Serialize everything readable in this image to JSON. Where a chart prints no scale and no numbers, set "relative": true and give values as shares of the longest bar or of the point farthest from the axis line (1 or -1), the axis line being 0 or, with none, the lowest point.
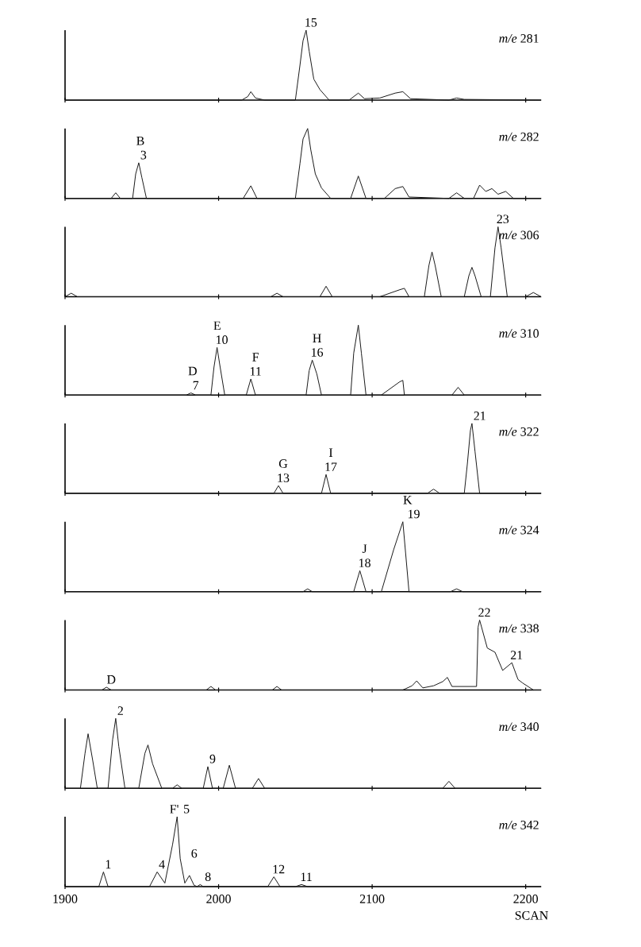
{
  "chart_data": [
    {
      "type": "line",
      "title": "*m/e* 281",
      "relative": true,
      "color": "#1a1a1a",
      "xlim": [
        1900,
        2210
      ],
      "xticks": [
        1900,
        2000,
        2100,
        2200
      ],
      "tick_labels": false,
      "x": [
        1900,
        2015,
        2019,
        2021,
        2024,
        2030,
        2050,
        2053,
        2055,
        2057,
        2059,
        2062,
        2066,
        2072,
        2085,
        2091,
        2095,
        2105,
        2115,
        2120,
        2125,
        2150,
        2155,
        2160,
        2210
      ],
      "values": [
        0,
        0,
        0.05,
        0.12,
        0.03,
        0,
        0,
        0.5,
        0.85,
        1,
        0.7,
        0.3,
        0.15,
        0,
        0,
        0.1,
        0.02,
        0.03,
        0.1,
        0.12,
        0.02,
        0,
        0.03,
        0.01,
        0
      ],
      "annotations": [
        {
          "text": "15",
          "x": 2057,
          "y": 1
        }
      ]
    },
    {
      "type": "line",
      "title": "*m/e* 282",
      "relative": true,
      "color": "#1a1a1a",
      "xlim": [
        1900,
        2210
      ],
      "xticks": [
        1900,
        2000,
        2100,
        2200
      ],
      "tick_labels": false,
      "x": [
        1900,
        1930,
        1933,
        1936,
        1944,
        1946,
        1948,
        1950,
        1953,
        2016,
        2021,
        2025,
        2050,
        2053,
        2055,
        2058,
        2060,
        2063,
        2067,
        2073,
        2086,
        2091,
        2096,
        2108,
        2115,
        2120,
        2124,
        2150,
        2155,
        2160,
        2166,
        2170,
        2174,
        2178,
        2182,
        2187,
        2192,
        2210
      ],
      "values": [
        0,
        0,
        0.08,
        0,
        0,
        0.35,
        0.51,
        0.3,
        0,
        0,
        0.18,
        0,
        0,
        0.5,
        0.85,
        1,
        0.7,
        0.35,
        0.15,
        0,
        0,
        0.32,
        0,
        0,
        0.14,
        0.17,
        0.02,
        0,
        0.08,
        0,
        0,
        0.19,
        0.1,
        0.14,
        0.06,
        0.1,
        0,
        0
      ],
      "annotations": [
        {
          "text": "3",
          "x": 1948,
          "y": 0.51
        },
        {
          "text": "B",
          "x": 1946,
          "y": 0.51
        }
      ]
    },
    {
      "type": "line",
      "title": "*m/e* 306",
      "relative": true,
      "color": "#1a1a1a",
      "xlim": [
        1900,
        2210
      ],
      "xticks": [
        1900,
        2000,
        2100,
        2200
      ],
      "tick_labels": false,
      "x": [
        1900,
        1904,
        1908,
        2034,
        2038,
        2042,
        2066,
        2070,
        2074,
        2105,
        2118,
        2121,
        2124,
        2134,
        2137,
        2139,
        2141,
        2145,
        2160,
        2163,
        2165,
        2167,
        2171,
        2177,
        2180,
        2182,
        2184,
        2188,
        2200,
        2205,
        2210
      ],
      "values": [
        0,
        0.05,
        0,
        0,
        0.05,
        0,
        0,
        0.15,
        0,
        0,
        0.1,
        0.12,
        0,
        0,
        0.45,
        0.64,
        0.45,
        0,
        0,
        0.3,
        0.42,
        0.3,
        0,
        0,
        0.7,
        1,
        0.7,
        0,
        0,
        0.06,
        0
      ],
      "annotations": [
        {
          "text": "23",
          "x": 2182,
          "y": 1
        }
      ]
    },
    {
      "type": "line",
      "title": "*m/e* 310",
      "relative": true,
      "color": "#1a1a1a",
      "xlim": [
        1900,
        2210
      ],
      "xticks": [
        1900,
        2000,
        2100,
        2200
      ],
      "tick_labels": false,
      "x": [
        1900,
        1979,
        1982,
        1985,
        1995,
        1997,
        1999,
        2001,
        2004,
        2018,
        2021,
        2024,
        2057,
        2059,
        2061,
        2064,
        2067,
        2086,
        2088,
        2091,
        2093,
        2096,
        2106,
        2118,
        2120,
        2121,
        2152,
        2156,
        2160,
        2210
      ],
      "values": [
        0,
        0,
        0.03,
        0,
        0,
        0.4,
        0.68,
        0.4,
        0,
        0,
        0.23,
        0,
        0,
        0.35,
        0.5,
        0.3,
        0,
        0,
        0.6,
        1,
        0.6,
        0,
        0,
        0.19,
        0.21,
        0,
        0,
        0.11,
        0,
        0
      ],
      "annotations": [
        {
          "text": "7",
          "x": 1982,
          "y": 0.03
        },
        {
          "text": "D",
          "x": 1980,
          "y": 0.03
        },
        {
          "text": "10",
          "x": 1999,
          "y": 0.68
        },
        {
          "text": "E",
          "x": 1996,
          "y": 0.68
        },
        {
          "text": "11",
          "x": 2021,
          "y": 0.23
        },
        {
          "text": "F",
          "x": 2021,
          "y": 0.23
        },
        {
          "text": "16",
          "x": 2061,
          "y": 0.5
        },
        {
          "text": "H",
          "x": 2061,
          "y": 0.5
        }
      ]
    },
    {
      "type": "line",
      "title": "*m/e* 322",
      "relative": true,
      "color": "#1a1a1a",
      "xlim": [
        1900,
        2210
      ],
      "xticks": [
        1900,
        2000,
        2100,
        2200
      ],
      "tick_labels": false,
      "x": [
        1900,
        2036,
        2039,
        2042,
        2067,
        2070,
        2073,
        2136,
        2140,
        2144,
        2160,
        2162,
        2164,
        2165,
        2167,
        2170,
        2210
      ],
      "values": [
        0,
        0,
        0.11,
        0,
        0,
        0.27,
        0,
        0,
        0.06,
        0,
        0,
        0.42,
        0.9,
        1,
        0.6,
        0,
        0
      ],
      "annotations": [
        {
          "text": "13",
          "x": 2039,
          "y": 0.11
        },
        {
          "text": "G",
          "x": 2039,
          "y": 0.11
        },
        {
          "text": "17",
          "x": 2070,
          "y": 0.27
        },
        {
          "text": "I",
          "x": 2070,
          "y": 0.27
        },
        {
          "text": "21",
          "x": 2167,
          "y": 1
        }
      ]
    },
    {
      "type": "line",
      "title": "*m/e* 324",
      "relative": true,
      "color": "#1a1a1a",
      "xlim": [
        1900,
        2210
      ],
      "xticks": [
        1900,
        2000,
        2100,
        2200
      ],
      "tick_labels": false,
      "x": [
        1900,
        2055,
        2058,
        2061,
        2088,
        2092,
        2096,
        2106,
        2110,
        2114,
        2120,
        2124,
        2151,
        2155,
        2159,
        2210
      ],
      "values": [
        0,
        0,
        0.04,
        0,
        0,
        0.3,
        0,
        0,
        0.3,
        0.6,
        1,
        0,
        0,
        0.04,
        0,
        0
      ],
      "annotations": [
        {
          "text": "18",
          "x": 2092,
          "y": 0.3
        },
        {
          "text": "J",
          "x": 2092,
          "y": 0.3
        },
        {
          "text": "19",
          "x": 2124,
          "y": 1
        },
        {
          "text": "K",
          "x": 2120,
          "y": 1
        }
      ]
    },
    {
      "type": "line",
      "title": "*m/e* 338",
      "relative": true,
      "color": "#1a1a1a",
      "xlim": [
        1900,
        2210
      ],
      "xticks": [
        1900,
        2000,
        2100,
        2200
      ],
      "tick_labels": false,
      "x": [
        1900,
        1924,
        1927,
        1930,
        1992,
        1995,
        1998,
        2035,
        2038,
        2041,
        2120,
        2126,
        2129,
        2133,
        2140,
        2146,
        2149,
        2152,
        2160,
        2168,
        2169,
        2170,
        2175,
        2180,
        2185,
        2191,
        2195,
        2198,
        2205,
        2210
      ],
      "values": [
        0,
        0,
        0.04,
        0,
        0,
        0.05,
        0,
        0,
        0.05,
        0,
        0,
        0.06,
        0.13,
        0.03,
        0.06,
        0.12,
        0.18,
        0.05,
        0.05,
        0.05,
        0.9,
        1,
        0.6,
        0.54,
        0.28,
        0.39,
        0.15,
        0.1,
        0,
        0
      ],
      "annotations": [
        {
          "text": "D",
          "x": 1927,
          "y": 0.04
        },
        {
          "text": "22",
          "x": 2170,
          "y": 1
        },
        {
          "text": "21",
          "x": 2191,
          "y": 0.39
        }
      ]
    },
    {
      "type": "line",
      "title": "*m/e* 340",
      "relative": true,
      "color": "#1a1a1a",
      "xlim": [
        1900,
        2210
      ],
      "xticks": [
        1900,
        2000,
        2100,
        2200
      ],
      "tick_labels": false,
      "x": [
        1900,
        1910,
        1913,
        1915,
        1918,
        1921,
        1928,
        1931,
        1933,
        1935,
        1939,
        1948,
        1952,
        1954,
        1957,
        1963,
        1970,
        1973,
        1976,
        1990,
        1993,
        1996,
        2003,
        2007,
        2011,
        2022,
        2026,
        2030,
        2146,
        2150,
        2154,
        2210
      ],
      "values": [
        0,
        0,
        0.5,
        0.78,
        0.4,
        0,
        0,
        0.7,
        1,
        0.6,
        0,
        0,
        0.5,
        0.62,
        0.35,
        0,
        0,
        0.05,
        0,
        0,
        0.31,
        0,
        0,
        0.33,
        0,
        0,
        0.14,
        0,
        0,
        0.1,
        0,
        0
      ],
      "annotations": [
        {
          "text": "2",
          "x": 1933,
          "y": 1
        },
        {
          "text": "9",
          "x": 1993,
          "y": 0.31
        }
      ]
    },
    {
      "type": "line",
      "title": "*m/e* 342",
      "relative": true,
      "color": "#1a1a1a",
      "xlim": [
        1900,
        2210
      ],
      "xticks": [
        1900,
        2000,
        2100,
        2200
      ],
      "tick_labels": "x",
      "xlabel": "SCAN",
      "x": [
        1900,
        1922,
        1925,
        1928,
        1955,
        1960,
        1965,
        1970,
        1973,
        1975,
        1978,
        1981,
        1984,
        1986,
        1988,
        1990,
        2032,
        2036,
        2040,
        2050,
        2054,
        2058,
        2210
      ],
      "values": [
        0,
        0,
        0.21,
        0,
        0,
        0.21,
        0.05,
        0.6,
        1,
        0.4,
        0.05,
        0.16,
        0.02,
        0,
        0.03,
        0,
        0,
        0.14,
        0,
        0,
        0.03,
        0,
        0
      ],
      "annotations": [
        {
          "text": "1",
          "x": 1925,
          "y": 0.21
        },
        {
          "text": "4",
          "x": 1960,
          "y": 0.21
        },
        {
          "text": "5",
          "x": 1976,
          "y": 1
        },
        {
          "text": "F'",
          "x": 1968,
          "y": 1
        },
        {
          "text": "6",
          "x": 1981,
          "y": 0.16
        },
        {
          "text": "8",
          "x": 1990,
          "y": 0.03
        },
        {
          "text": "12",
          "x": 2036,
          "y": 0.14
        },
        {
          "text": "11",
          "x": 2054,
          "y": 0.03
        }
      ]
    }
  ]
}
